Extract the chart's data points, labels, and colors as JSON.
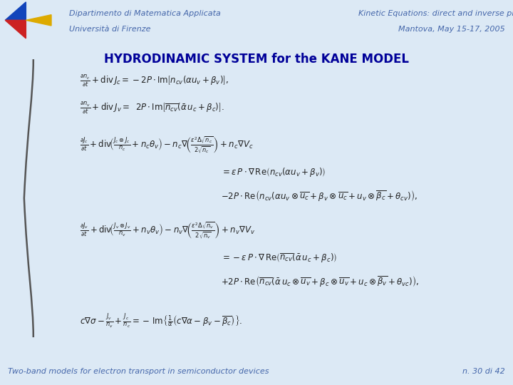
{
  "bg_color": "#dce9f5",
  "header_line_color": "#6688aa",
  "left_text_line1": "Dipartimento di Matematica Applicata",
  "left_text_line2": "Università di Firenze",
  "right_text_line1": "Kinetic Equations: direct and inverse problems",
  "right_text_line2": "Mantova, May 15-17, 2005",
  "header_text_color": "#4466aa",
  "title": "HYDRODINAMIC SYSTEM for the KANE MODEL",
  "title_color": "#000099",
  "title_fontsize": 12,
  "footer_left": "Two-band models for electron transport in semiconductor devices",
  "footer_right": "n. 30 di 42",
  "footer_color": "#4466aa",
  "footer_fontsize": 8,
  "header_fontsize": 8,
  "eq_fontsize": 8.5,
  "eq_color": "#222222"
}
